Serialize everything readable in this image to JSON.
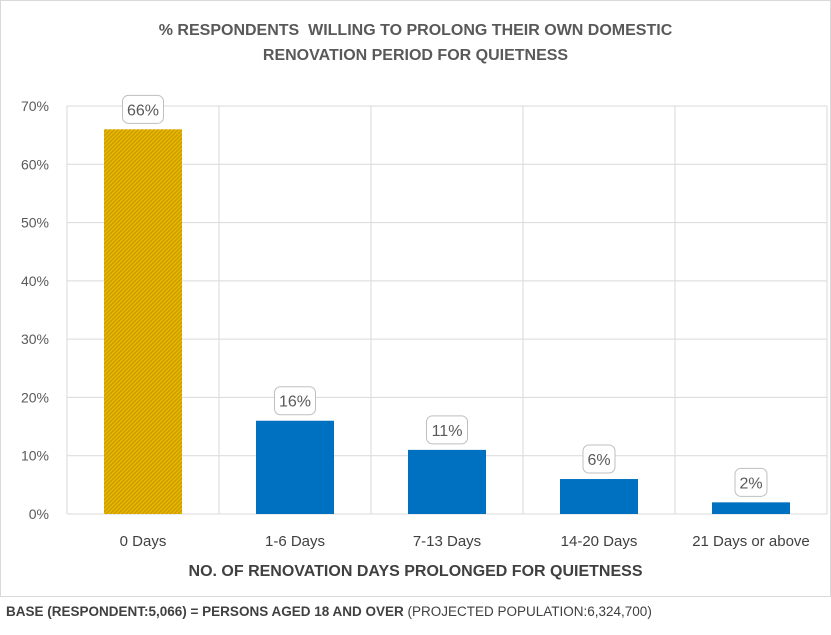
{
  "chart_data": {
    "type": "bar",
    "title_lines": [
      "% RESPONDENTS  WILLING TO PROLONG THEIR OWN DOMESTIC",
      "RENOVATION PERIOD FOR QUIETNESS"
    ],
    "categories": [
      "0 Days",
      "1-6 Days",
      "7-13 Days",
      "14-20 Days",
      "21  Days or above"
    ],
    "values": [
      66,
      16,
      11,
      6,
      2
    ],
    "data_labels": [
      "66%",
      "16%",
      "11%",
      "6%",
      "2%"
    ],
    "xlabel": "NO. OF RENOVATION DAYS PROLONGED FOR QUIETNESS",
    "ylabel": "",
    "yticks": [
      "0%",
      "10%",
      "20%",
      "30%",
      "40%",
      "50%",
      "60%",
      "70%"
    ],
    "ylim": [
      0,
      70
    ],
    "grid": true,
    "colors": {
      "highlight_bar": "#e6b800",
      "highlight_hatch": "#c99700",
      "bar": "#0070c0",
      "grid": "#d9d9d9",
      "label_text": "#595959"
    }
  },
  "footer": {
    "bold": "BASE (RESPONDENT:5,066) = PERSONS AGED 18 AND OVER",
    "normal": " (PROJECTED POPULATION:6,324,700)"
  }
}
